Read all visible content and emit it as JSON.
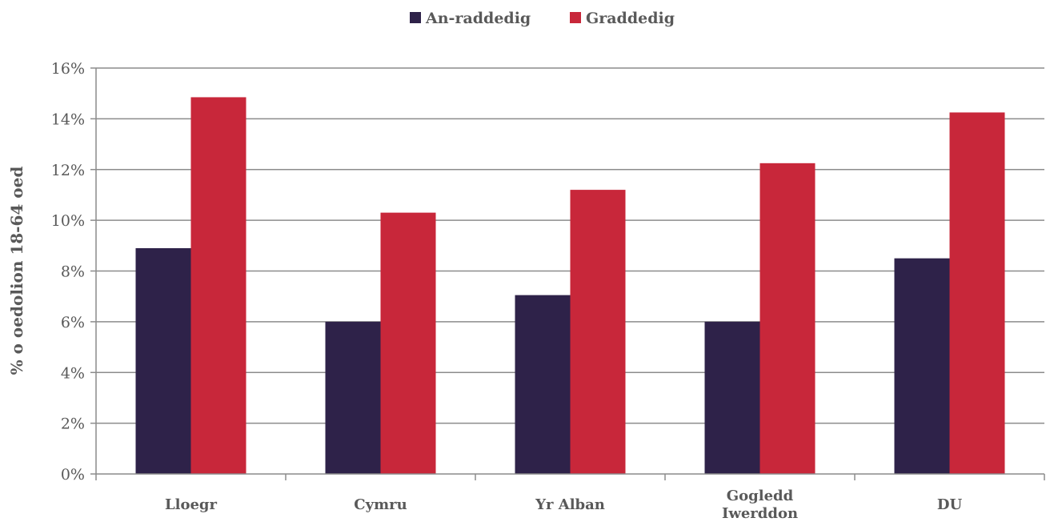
{
  "chart_data": {
    "type": "bar",
    "title": "",
    "xlabel": "",
    "ylabel": "% o oedolion 18-64 oed",
    "categories": [
      "Lloegr",
      "Cymru",
      "Yr Alban",
      "Gogledd Iwerddon",
      "DU"
    ],
    "series": [
      {
        "name": "An-raddedig",
        "color": "#2e2249",
        "values": [
          8.9,
          6.0,
          7.05,
          6.0,
          8.5
        ]
      },
      {
        "name": "Graddedig",
        "color": "#c8273a",
        "values": [
          14.85,
          10.3,
          11.2,
          12.25,
          14.25
        ]
      }
    ],
    "ylim": [
      0,
      16
    ],
    "yticks": [
      0,
      2,
      4,
      6,
      8,
      10,
      12,
      14,
      16
    ],
    "ytick_labels": [
      "0%",
      "2%",
      "4%",
      "6%",
      "8%",
      "10%",
      "12%",
      "14%",
      "16%"
    ],
    "grid": true,
    "legend_position": "top-center"
  }
}
